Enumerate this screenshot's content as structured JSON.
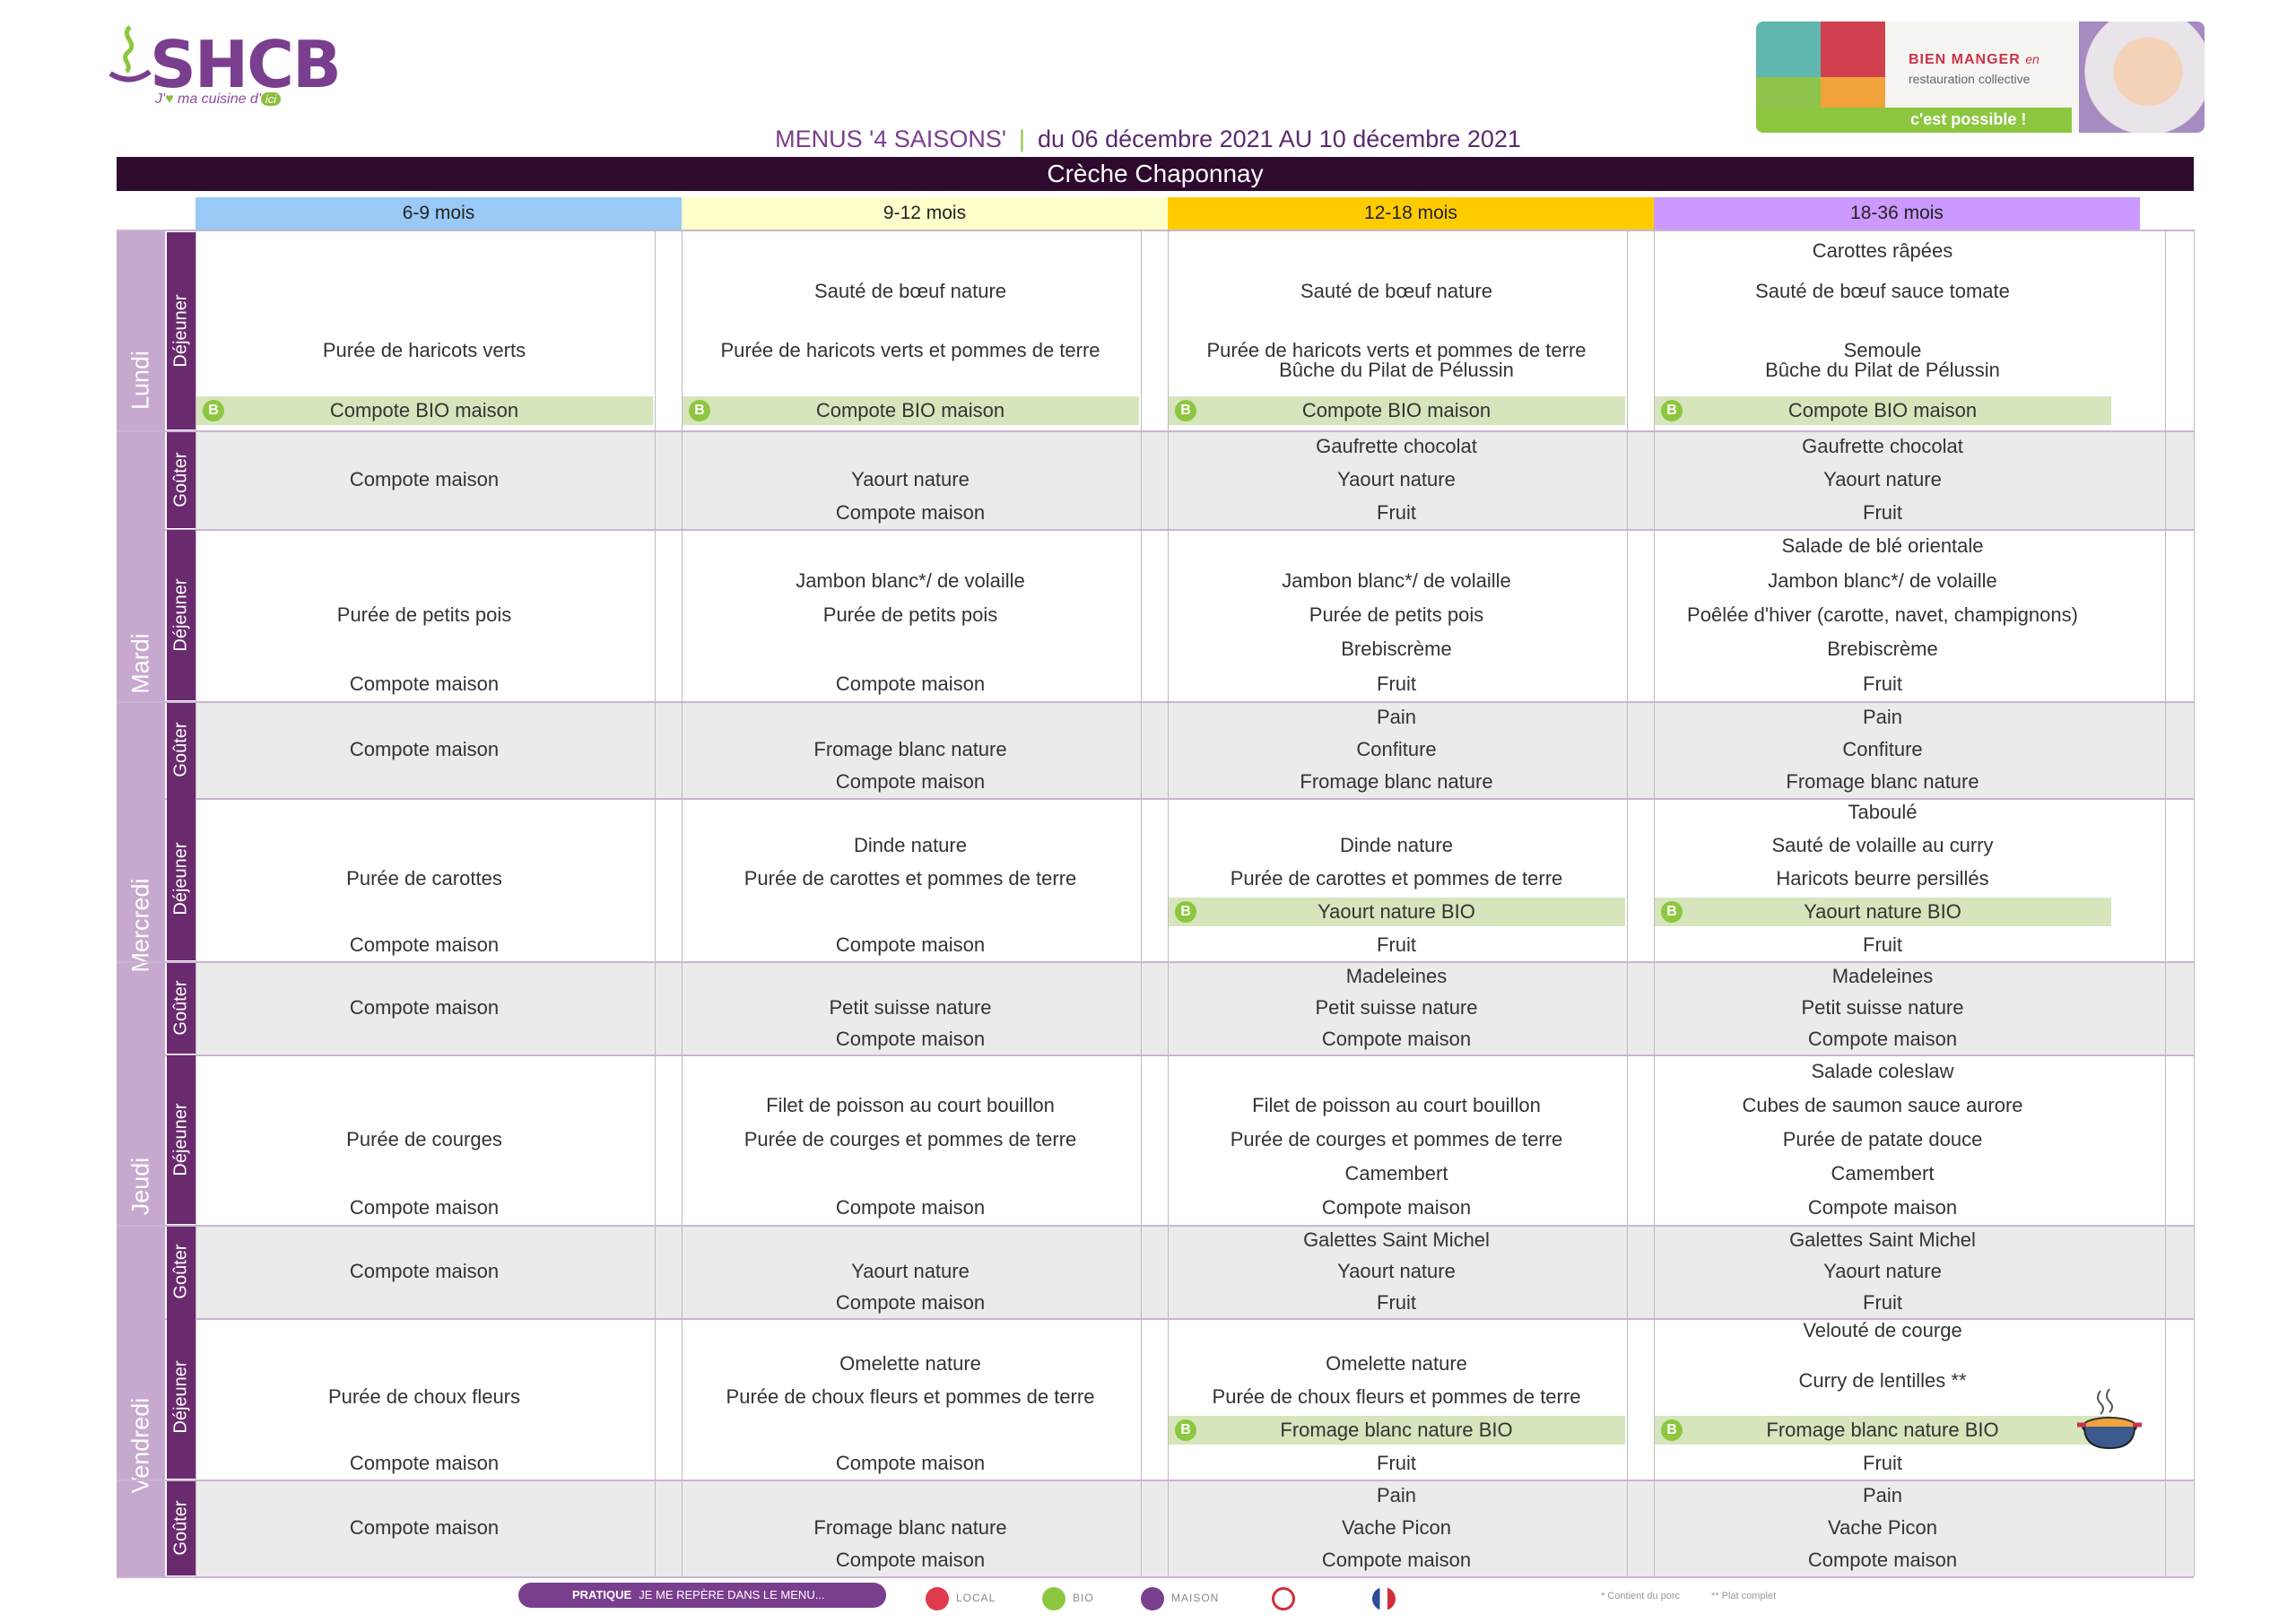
{
  "header": {
    "brand": "SHCB",
    "tagline_pre": "J'",
    "tagline_mid": " ma cuisine d'",
    "tagline_ici": "ici",
    "banner_bien_manger": "BIEN MANGER",
    "banner_en": "en",
    "banner_restauration": "restauration collective",
    "banner_possible": "c'est possible !",
    "menus_title": "MENUS '4 SAISONS'",
    "separator": "|",
    "dates": "du 06 décembre 2021 AU 10 décembre 2021",
    "creche": "Crèche Chaponnay"
  },
  "ages": [
    "6-9 mois",
    "9-12 mois",
    "12-18 mois",
    "18-36 mois"
  ],
  "age_colors": [
    "#99c9f5",
    "#ffffcc",
    "#ffcc00",
    "#cc99ff"
  ],
  "meals": {
    "dej": "Déjeuner",
    "gout": "Goûter"
  },
  "bio_badge": "B",
  "days": [
    {
      "name": "Lundi",
      "dej": [
        [
          {
            "t": "Purée de haricots verts",
            "r": 2.5
          },
          {
            "t": "Compote BIO maison",
            "r": 4,
            "bio": true
          }
        ],
        [
          {
            "t": "Sauté de bœuf nature",
            "r": 1
          },
          {
            "t": "Purée de haricots verts et pommes de terre",
            "r": 2.5
          },
          {
            "t": "Compote BIO maison",
            "r": 4,
            "bio": true
          }
        ],
        [
          {
            "t": "Sauté de bœuf nature",
            "r": 1
          },
          {
            "t": "Purée de haricots verts et pommes de terre",
            "r": 2.5
          },
          {
            "t": "Bûche du Pilat de Pélussin",
            "r": 3
          },
          {
            "t": "Compote BIO maison",
            "r": 4,
            "bio": true
          }
        ],
        [
          {
            "t": "Carottes râpées",
            "r": 0
          },
          {
            "t": "Sauté de bœuf sauce tomate",
            "r": 1
          },
          {
            "t": "Semoule",
            "r": 2.5
          },
          {
            "t": "Bûche du Pilat de Pélussin",
            "r": 3
          },
          {
            "t": "Compote BIO maison",
            "r": 4,
            "bio": true
          }
        ]
      ],
      "gout": [
        [
          {
            "t": "Compote maison",
            "r": 1
          }
        ],
        [
          {
            "t": "Yaourt nature",
            "r": 1
          },
          {
            "t": "Compote maison",
            "r": 2
          }
        ],
        [
          {
            "t": "Gaufrette chocolat",
            "r": 0
          },
          {
            "t": "Yaourt nature",
            "r": 1
          },
          {
            "t": "Fruit",
            "r": 2
          }
        ],
        [
          {
            "t": "Gaufrette chocolat",
            "r": 0
          },
          {
            "t": "Yaourt nature",
            "r": 1
          },
          {
            "t": "Fruit",
            "r": 2
          }
        ]
      ]
    },
    {
      "name": "Mardi",
      "dej": [
        [
          {
            "t": "Purée de petits pois",
            "r": 2
          },
          {
            "t": "Compote maison",
            "r": 4
          }
        ],
        [
          {
            "t": "Jambon blanc*/ de volaille",
            "r": 1
          },
          {
            "t": "Purée de petits pois",
            "r": 2
          },
          {
            "t": "Compote maison",
            "r": 4
          }
        ],
        [
          {
            "t": "Jambon blanc*/ de volaille",
            "r": 1
          },
          {
            "t": "Purée de petits pois",
            "r": 2
          },
          {
            "t": "Brebiscrème",
            "r": 3
          },
          {
            "t": "Fruit",
            "r": 4
          }
        ],
        [
          {
            "t": "Salade de blé orientale",
            "r": 0
          },
          {
            "t": "Jambon blanc*/ de volaille",
            "r": 1
          },
          {
            "t": "Poêlée d'hiver (carotte, navet, champignons)",
            "r": 2
          },
          {
            "t": "Brebiscrème",
            "r": 3
          },
          {
            "t": "Fruit",
            "r": 4
          }
        ]
      ],
      "gout": [
        [
          {
            "t": "Compote maison",
            "r": 1
          }
        ],
        [
          {
            "t": "Fromage blanc nature",
            "r": 1
          },
          {
            "t": "Compote maison",
            "r": 2
          }
        ],
        [
          {
            "t": "Pain",
            "r": 0
          },
          {
            "t": "Confiture",
            "r": 1
          },
          {
            "t": "Fromage blanc nature",
            "r": 2
          }
        ],
        [
          {
            "t": "Pain",
            "r": 0
          },
          {
            "t": "Confiture",
            "r": 1
          },
          {
            "t": "Fromage blanc nature",
            "r": 2
          }
        ]
      ]
    },
    {
      "name": "Mercredi",
      "dej": [
        [
          {
            "t": "Purée de carottes",
            "r": 2
          },
          {
            "t": "Compote maison",
            "r": 4
          }
        ],
        [
          {
            "t": "Dinde nature",
            "r": 1
          },
          {
            "t": "Purée de carottes et pommes de terre",
            "r": 2
          },
          {
            "t": "Compote maison",
            "r": 4
          }
        ],
        [
          {
            "t": "Dinde nature",
            "r": 1
          },
          {
            "t": "Purée de carottes et pommes de terre",
            "r": 2
          },
          {
            "t": "Yaourt nature BIO",
            "r": 3,
            "bio": true
          },
          {
            "t": "Fruit",
            "r": 4
          }
        ],
        [
          {
            "t": "Taboulé",
            "r": 0
          },
          {
            "t": "Sauté de volaille au curry",
            "r": 1
          },
          {
            "t": "Haricots beurre persillés",
            "r": 2
          },
          {
            "t": "Yaourt nature BIO",
            "r": 3,
            "bio": true
          },
          {
            "t": "Fruit",
            "r": 4
          }
        ]
      ],
      "gout": [
        [
          {
            "t": "Compote maison",
            "r": 1
          }
        ],
        [
          {
            "t": "Petit suisse nature",
            "r": 1
          },
          {
            "t": "Compote maison",
            "r": 2
          }
        ],
        [
          {
            "t": "Madeleines",
            "r": 0
          },
          {
            "t": "Petit suisse nature",
            "r": 1
          },
          {
            "t": "Compote maison",
            "r": 2
          }
        ],
        [
          {
            "t": "Madeleines",
            "r": 0
          },
          {
            "t": "Petit suisse nature",
            "r": 1
          },
          {
            "t": "Compote maison",
            "r": 2
          }
        ]
      ]
    },
    {
      "name": "Jeudi",
      "dej": [
        [
          {
            "t": "Purée de courges",
            "r": 2
          },
          {
            "t": "Compote maison",
            "r": 4
          }
        ],
        [
          {
            "t": "Filet de poisson au court bouillon",
            "r": 1
          },
          {
            "t": "Purée de courges et pommes de terre",
            "r": 2
          },
          {
            "t": "Compote maison",
            "r": 4
          }
        ],
        [
          {
            "t": "Filet de poisson au court bouillon",
            "r": 1
          },
          {
            "t": "Purée de courges et pommes de terre",
            "r": 2
          },
          {
            "t": "Camembert",
            "r": 3
          },
          {
            "t": "Compote maison",
            "r": 4
          }
        ],
        [
          {
            "t": "Salade coleslaw",
            "r": 0
          },
          {
            "t": "Cubes de saumon sauce aurore",
            "r": 1
          },
          {
            "t": "Purée de patate douce",
            "r": 2
          },
          {
            "t": "Camembert",
            "r": 3
          },
          {
            "t": "Compote maison",
            "r": 4
          }
        ]
      ],
      "gout": [
        [
          {
            "t": "Compote maison",
            "r": 1
          }
        ],
        [
          {
            "t": "Yaourt nature",
            "r": 1
          },
          {
            "t": "Compote maison",
            "r": 2
          }
        ],
        [
          {
            "t": "Galettes Saint Michel",
            "r": 0
          },
          {
            "t": "Yaourt nature",
            "r": 1
          },
          {
            "t": "Fruit",
            "r": 2
          }
        ],
        [
          {
            "t": "Galettes Saint Michel",
            "r": 0
          },
          {
            "t": "Yaourt nature",
            "r": 1
          },
          {
            "t": "Fruit",
            "r": 2
          }
        ]
      ]
    },
    {
      "name": "Vendredi",
      "dej": [
        [
          {
            "t": "Purée de choux fleurs",
            "r": 2
          },
          {
            "t": "Compote maison",
            "r": 4
          }
        ],
        [
          {
            "t": "Omelette nature",
            "r": 1
          },
          {
            "t": "Purée de choux fleurs et pommes de terre",
            "r": 2
          },
          {
            "t": "Compote maison",
            "r": 4
          }
        ],
        [
          {
            "t": "Omelette nature",
            "r": 1
          },
          {
            "t": "Purée de choux fleurs et pommes de terre",
            "r": 2
          },
          {
            "t": "Fromage blanc nature BIO",
            "r": 3,
            "bio": true
          },
          {
            "t": "Fruit",
            "r": 4
          }
        ],
        [
          {
            "t": "Velouté de courge",
            "r": 0
          },
          {
            "t": "Curry de lentilles **",
            "r": 1.5
          },
          {
            "t": "Fromage blanc nature BIO",
            "r": 3,
            "bio": true
          },
          {
            "t": "Fruit",
            "r": 4
          }
        ]
      ],
      "gout": [
        [
          {
            "t": "Compote maison",
            "r": 1
          }
        ],
        [
          {
            "t": "Fromage blanc nature",
            "r": 1
          },
          {
            "t": "Compote maison",
            "r": 2
          }
        ],
        [
          {
            "t": "Pain",
            "r": 0
          },
          {
            "t": "Vache Picon",
            "r": 1
          },
          {
            "t": "Compote maison",
            "r": 2
          }
        ],
        [
          {
            "t": "Pain",
            "r": 0
          },
          {
            "t": "Vache Picon",
            "r": 1
          },
          {
            "t": "Compote maison",
            "r": 2
          }
        ]
      ]
    }
  ],
  "legend": {
    "pratique": "PRATIQUE",
    "reperes": "JE ME REPÈRE DANS LE MENU...",
    "local": "LOCAL",
    "bio": "BIO",
    "maison": "MAISON",
    "note_porc": "* Contient du porc",
    "note_plat": "** Plat complet"
  },
  "colors": {
    "purple": "#7a3e8e",
    "dark": "#2e0a2e",
    "green": "#8dc63f",
    "bio_row": "#d6e5bc",
    "gouter_bg": "#ebebeb"
  }
}
